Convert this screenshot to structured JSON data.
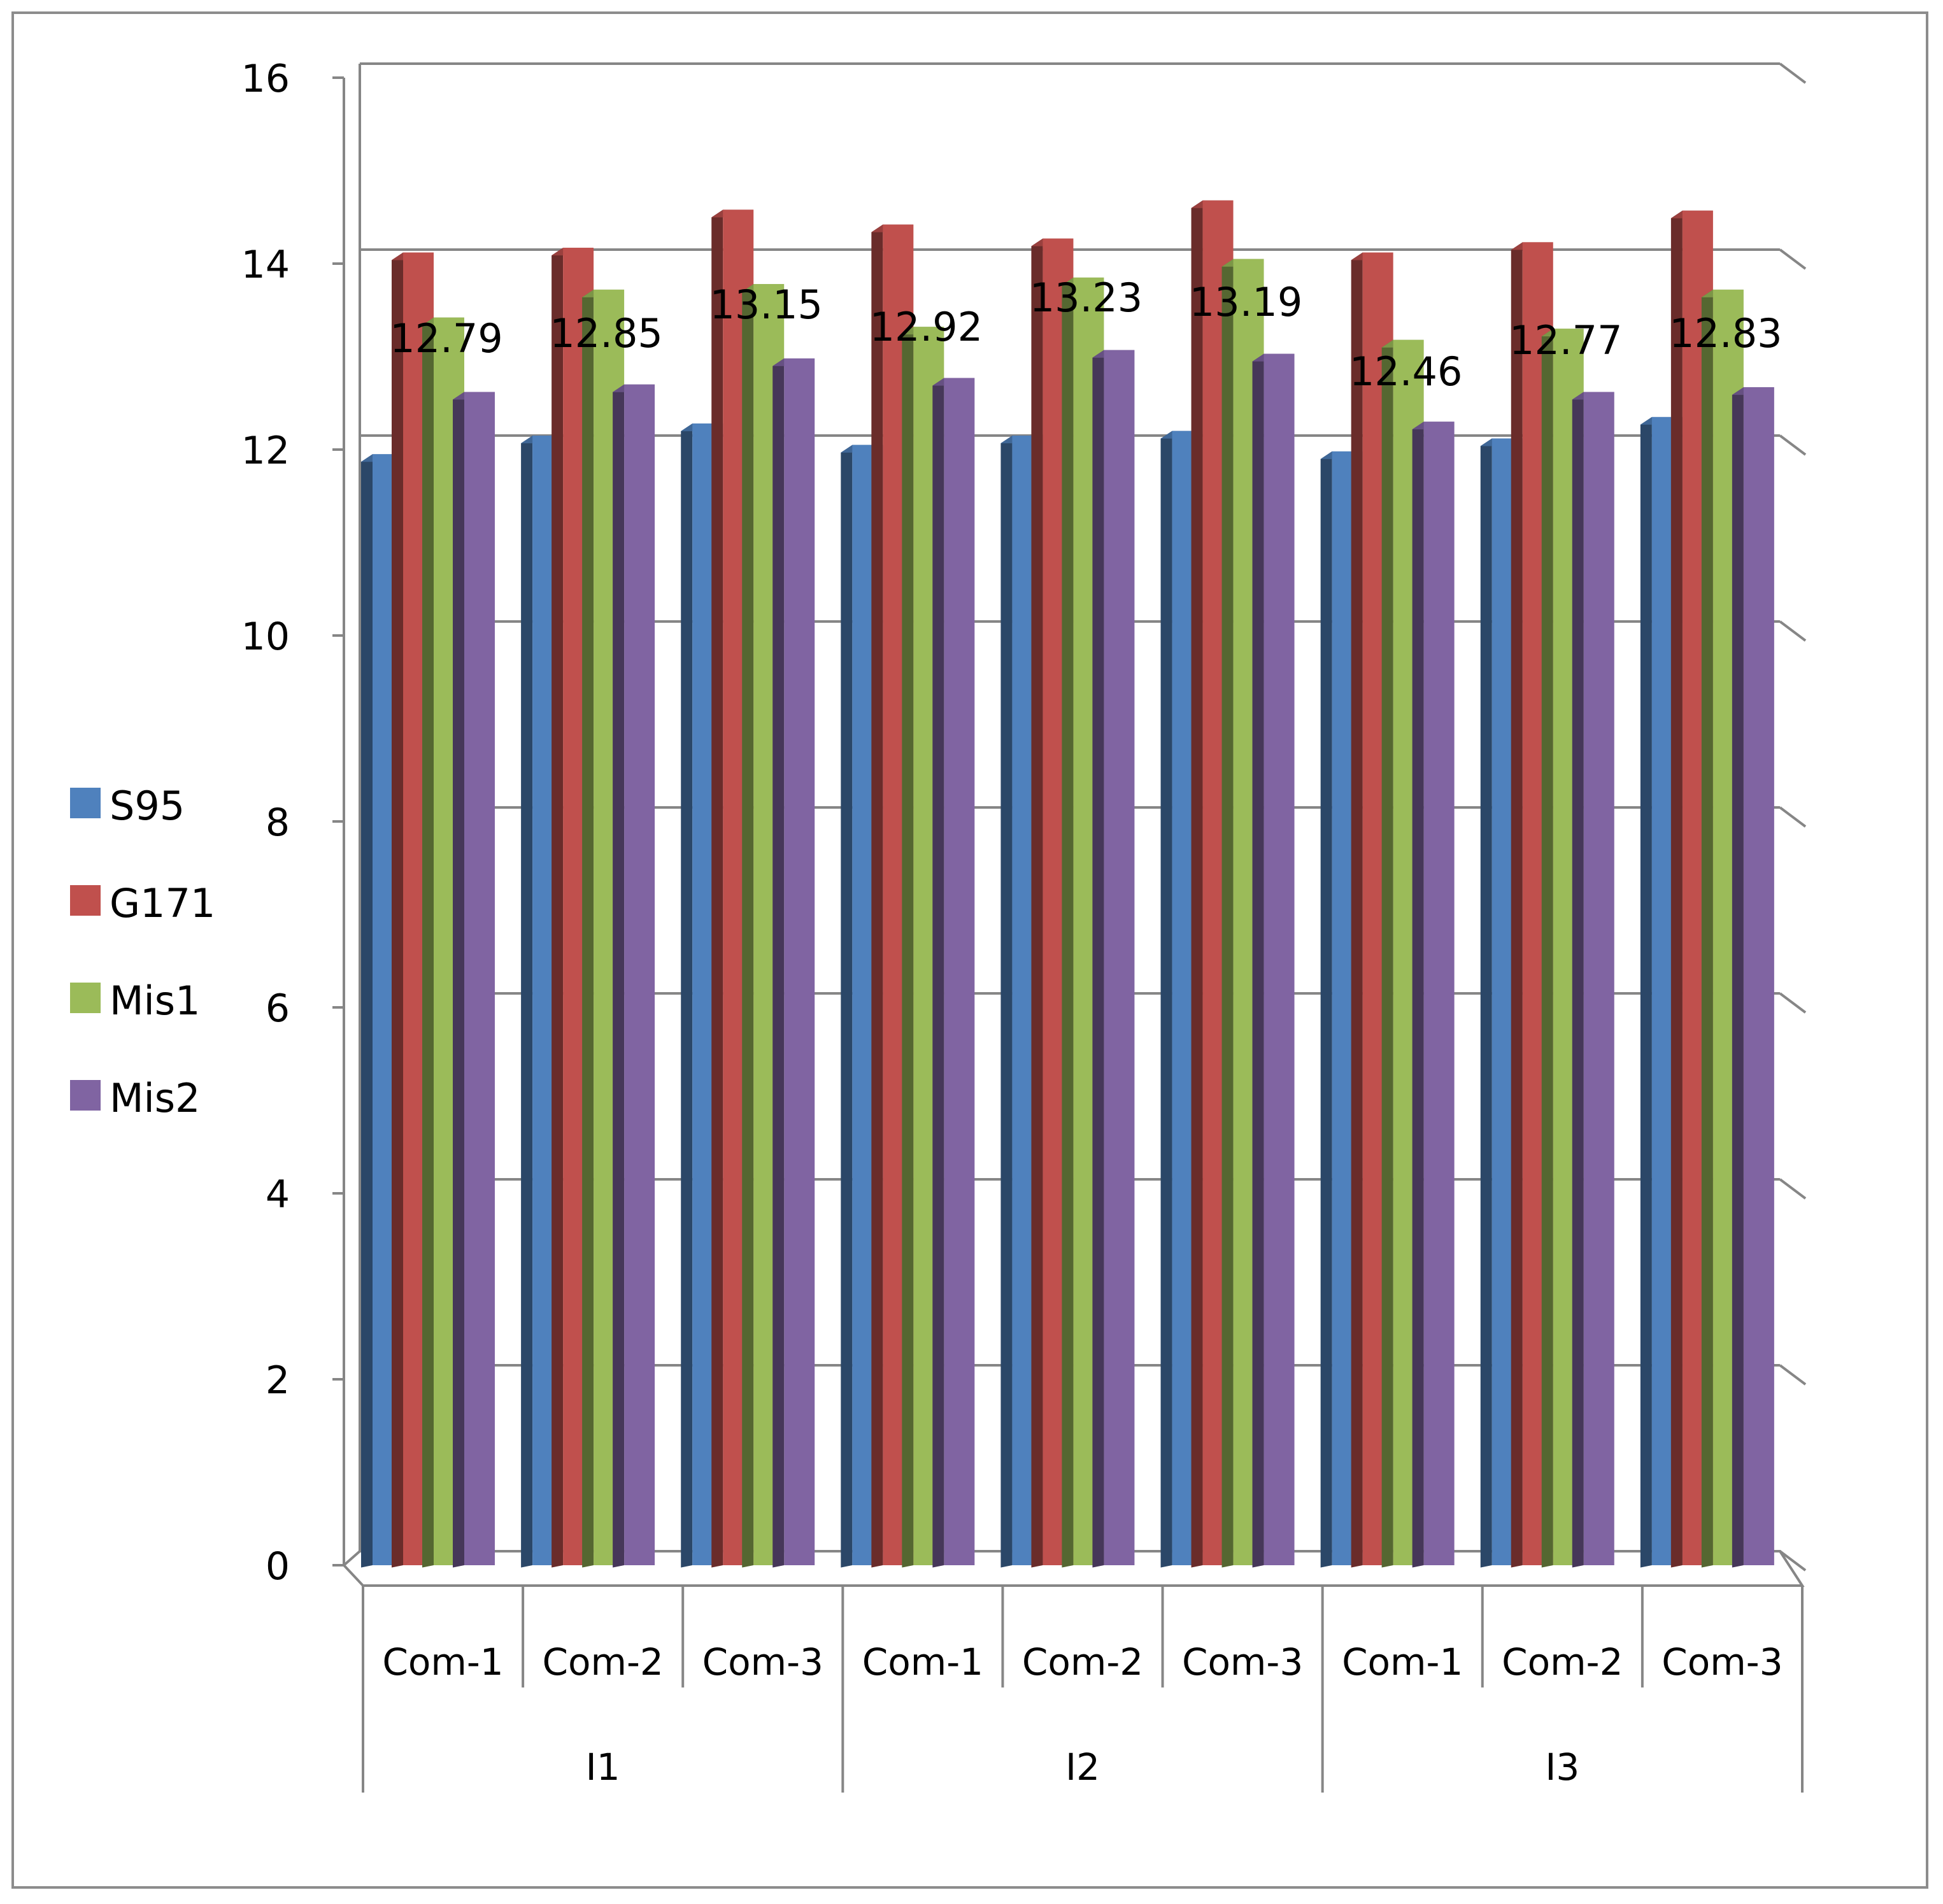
{
  "chart_data": {
    "type": "bar",
    "title": "",
    "xlabel": "",
    "ylabel": "",
    "ylim": [
      0,
      16
    ],
    "yticks": [
      0,
      2,
      4,
      6,
      8,
      10,
      12,
      14,
      16
    ],
    "grid": true,
    "legend_position": "left",
    "groups": [
      {
        "label": "I1",
        "categories": [
          "Com-1",
          "Com-2",
          "Com-3"
        ]
      },
      {
        "label": "I2",
        "categories": [
          "Com-1",
          "Com-2",
          "Com-3"
        ]
      },
      {
        "label": "I3",
        "categories": [
          "Com-1",
          "Com-2",
          "Com-3"
        ]
      }
    ],
    "categories": [
      "Com-1",
      "Com-2",
      "Com-3",
      "Com-1",
      "Com-2",
      "Com-3",
      "Com-1",
      "Com-2",
      "Com-3"
    ],
    "series": [
      {
        "name": "S95",
        "color": "#4F81BD",
        "values": [
          11.95,
          12.15,
          12.28,
          12.05,
          12.15,
          12.2,
          11.98,
          12.12,
          12.35
        ]
      },
      {
        "name": "G171",
        "color": "#C0504D",
        "values": [
          14.12,
          14.17,
          14.58,
          14.42,
          14.27,
          14.68,
          14.12,
          14.23,
          14.57
        ]
      },
      {
        "name": "Mis1",
        "color": "#9BBB59",
        "values": [
          13.42,
          13.72,
          13.78,
          13.32,
          13.85,
          14.05,
          13.18,
          13.3,
          13.72
        ]
      },
      {
        "name": "Mis2",
        "color": "#8064A2",
        "values": [
          12.62,
          12.7,
          12.98,
          12.77,
          13.07,
          13.03,
          12.3,
          12.62,
          12.67
        ]
      }
    ],
    "data_labels": [
      "12.79",
      "12.85",
      "13.15",
      "12.92",
      "13.23",
      "13.19",
      "12.46",
      "12.77",
      "12.83"
    ]
  }
}
